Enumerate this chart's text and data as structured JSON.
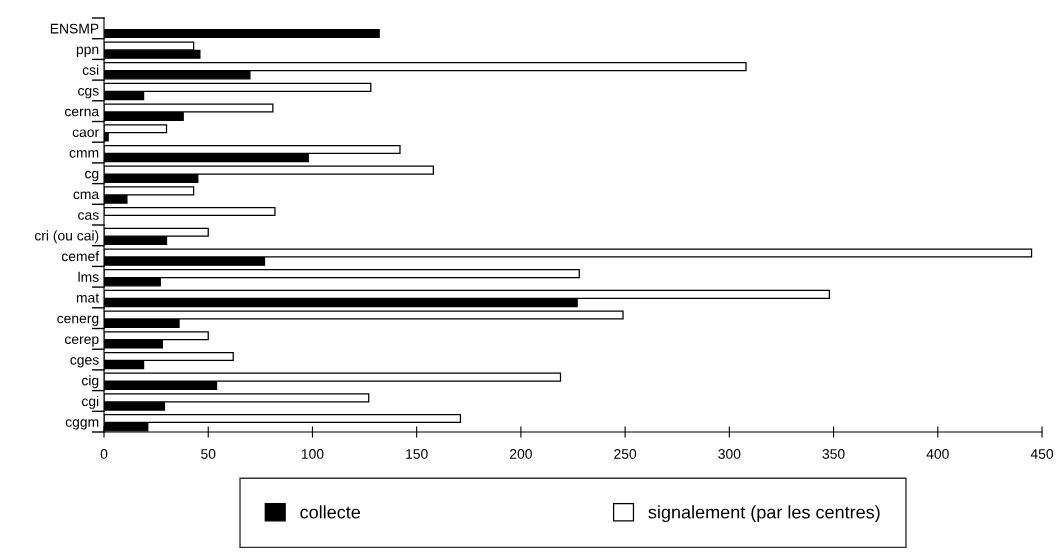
{
  "chart_data": {
    "type": "bar",
    "orientation": "horizontal",
    "categories": [
      "ENSMP",
      "ppn",
      "csi",
      "cgs",
      "cerna",
      "caor",
      "cmm",
      "cg",
      "cma",
      "cas",
      "cri (ou cai)",
      "cemef",
      "lms",
      "mat",
      "cenerg",
      "cerep",
      "cges",
      "cig",
      "cgi",
      "cggm"
    ],
    "series": [
      {
        "name": "collecte",
        "color": "#000000",
        "values": [
          132,
          46,
          70,
          19,
          38,
          2,
          98,
          45,
          11,
          null,
          30,
          77,
          27,
          227,
          36,
          28,
          19,
          54,
          29,
          21
        ]
      },
      {
        "name": "signalement (par les centres)",
        "color": "#ffffff",
        "values": [
          null,
          43,
          308,
          128,
          81,
          30,
          142,
          158,
          43,
          82,
          50,
          445,
          228,
          348,
          249,
          50,
          62,
          219,
          127,
          171
        ]
      }
    ],
    "xlim": [
      0,
      450
    ],
    "xticks": [
      0,
      50,
      100,
      150,
      200,
      250,
      300,
      350,
      400,
      450
    ],
    "grid": false,
    "legend": "bottom"
  }
}
